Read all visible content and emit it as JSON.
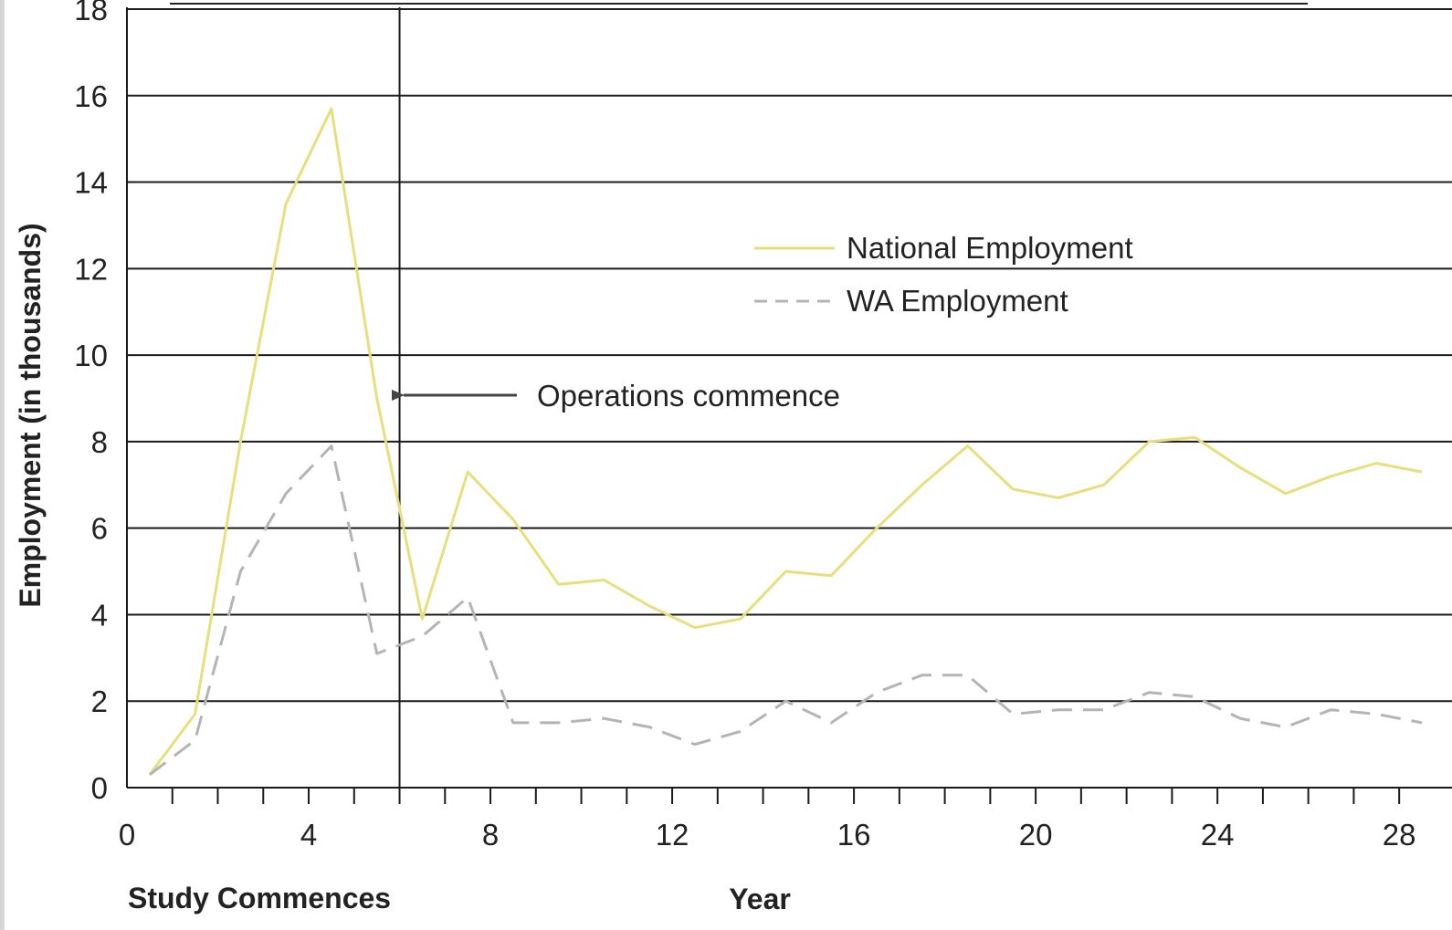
{
  "chart_data": {
    "type": "line",
    "title": "",
    "xlabel": "Year",
    "ylabel": "Employment (in thousands)",
    "xlim": [
      0,
      28.7
    ],
    "ylim": [
      0,
      18
    ],
    "x_ticks": [
      0,
      4,
      8,
      12,
      16,
      20,
      24,
      28
    ],
    "y_ticks": [
      0,
      2,
      4,
      6,
      8,
      10,
      12,
      14,
      16,
      18
    ],
    "grid": "horizontal",
    "legend_position": "upper-center",
    "series": [
      {
        "name": "National Employment",
        "color": "#e8df7c",
        "style": "solid",
        "x": [
          0.5,
          1.5,
          2.5,
          3.5,
          4.5,
          5.5,
          6.5,
          7.5,
          8.5,
          9.5,
          10.5,
          11.5,
          12.5,
          13.5,
          14.5,
          15.5,
          16.5,
          17.5,
          18.5,
          19.5,
          20.5,
          21.5,
          22.5,
          23.5,
          24.5,
          25.5,
          26.5,
          27.5,
          28.5
        ],
        "y": [
          0.3,
          1.7,
          8,
          13.5,
          15.7,
          9,
          3.9,
          7.3,
          6.2,
          4.7,
          4.8,
          4.2,
          3.7,
          3.9,
          5,
          4.9,
          6,
          7,
          7.9,
          6.9,
          6.7,
          7,
          8,
          8.1,
          7.4,
          6.8,
          7.2,
          7.5,
          7.3
        ]
      },
      {
        "name": "WA Employment",
        "color": "#b4b4b4",
        "style": "dashed",
        "x": [
          0.5,
          1.5,
          2.5,
          3.5,
          4.5,
          5.5,
          6.5,
          7.5,
          8.5,
          9.5,
          10.5,
          11.5,
          12.5,
          13.5,
          14.5,
          15.5,
          16.5,
          17.5,
          18.5,
          19.5,
          20.5,
          21.5,
          22.5,
          23.5,
          24.5,
          25.5,
          26.5,
          27.5,
          28.5
        ],
        "y": [
          0.3,
          1.1,
          5,
          6.8,
          7.9,
          3.1,
          3.5,
          4.4,
          1.5,
          1.5,
          1.6,
          1.4,
          1,
          1.3,
          2,
          1.5,
          2.2,
          2.6,
          2.6,
          1.7,
          1.8,
          1.8,
          2.2,
          2.1,
          1.6,
          1.4,
          1.8,
          1.7,
          1.5
        ]
      }
    ],
    "vertical_marker": {
      "x": 6
    },
    "annotations": [
      {
        "text": "Operations commence",
        "arrow_to_x": 6,
        "y": 9
      },
      {
        "text": "Study Commences"
      }
    ]
  }
}
